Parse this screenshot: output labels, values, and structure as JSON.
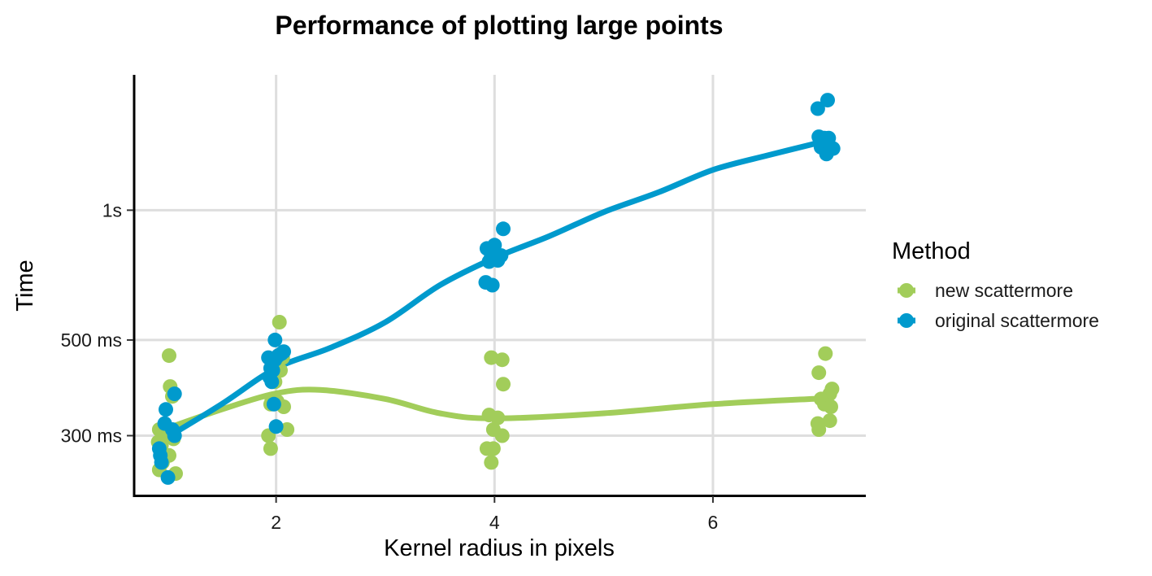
{
  "chart_data": {
    "type": "scatter",
    "title": "Performance of plotting large points",
    "xlabel": "Kernel radius in pixels",
    "ylabel": "Time",
    "x_scale": "linear",
    "y_scale": "log",
    "xlim": [
      0.7,
      7.4
    ],
    "ylim": [
      0.218,
      2.06
    ],
    "x_ticks": [
      2,
      4,
      6
    ],
    "x_tick_labels": [
      "2",
      "4",
      "6"
    ],
    "y_ticks": [
      0.3,
      0.5,
      1.0
    ],
    "y_tick_labels": [
      "300 ms",
      "500 ms",
      "1s"
    ],
    "grid": true,
    "legend": {
      "title": "Method",
      "position": "right"
    },
    "series": [
      {
        "name": "new scattermore",
        "color": "#A2CD5A",
        "points": [
          [
            1.02,
            0.46
          ],
          [
            1.03,
            0.39
          ],
          [
            1.05,
            0.37
          ],
          [
            0.93,
            0.31
          ],
          [
            0.97,
            0.3
          ],
          [
            1.0,
            0.305
          ],
          [
            1.06,
            0.295
          ],
          [
            0.92,
            0.29
          ],
          [
            0.95,
            0.285
          ],
          [
            1.02,
            0.27
          ],
          [
            0.96,
            0.26
          ],
          [
            0.93,
            0.25
          ],
          [
            1.08,
            0.245
          ],
          [
            2.03,
            0.55
          ],
          [
            2.06,
            0.455
          ],
          [
            1.98,
            0.44
          ],
          [
            1.97,
            0.42
          ],
          [
            2.04,
            0.425
          ],
          [
            1.99,
            0.4
          ],
          [
            1.96,
            0.365
          ],
          [
            2.01,
            0.36
          ],
          [
            2.07,
            0.35
          ],
          [
            1.95,
            0.355
          ],
          [
            2.1,
            0.31
          ],
          [
            1.93,
            0.3
          ],
          [
            1.95,
            0.28
          ],
          [
            3.97,
            0.455
          ],
          [
            4.07,
            0.45
          ],
          [
            4.08,
            0.395
          ],
          [
            3.95,
            0.335
          ],
          [
            4.03,
            0.33
          ],
          [
            3.99,
            0.31
          ],
          [
            4.07,
            0.3
          ],
          [
            3.93,
            0.28
          ],
          [
            3.99,
            0.28
          ],
          [
            3.97,
            0.26
          ],
          [
            7.03,
            0.465
          ],
          [
            6.97,
            0.42
          ],
          [
            7.09,
            0.385
          ],
          [
            7.07,
            0.375
          ],
          [
            6.99,
            0.365
          ],
          [
            7.02,
            0.355
          ],
          [
            7.08,
            0.35
          ],
          [
            6.96,
            0.32
          ],
          [
            6.97,
            0.31
          ],
          [
            7.07,
            0.325
          ]
        ],
        "trend": [
          [
            0.97,
            0.31
          ],
          [
            1.5,
            0.345
          ],
          [
            2.0,
            0.376
          ],
          [
            2.4,
            0.383
          ],
          [
            3.0,
            0.365
          ],
          [
            3.5,
            0.338
          ],
          [
            4.0,
            0.329
          ],
          [
            5.0,
            0.338
          ],
          [
            6.0,
            0.355
          ],
          [
            7.0,
            0.366
          ]
        ]
      },
      {
        "name": "original scattermore",
        "color": "#009ACD",
        "points": [
          [
            1.07,
            0.375
          ],
          [
            0.99,
            0.345
          ],
          [
            0.98,
            0.32
          ],
          [
            1.05,
            0.31
          ],
          [
            1.07,
            0.3
          ],
          [
            0.93,
            0.28
          ],
          [
            0.94,
            0.27
          ],
          [
            0.95,
            0.26
          ],
          [
            1.01,
            0.24
          ],
          [
            1.99,
            0.5
          ],
          [
            2.07,
            0.47
          ],
          [
            2.05,
            0.465
          ],
          [
            2.02,
            0.46
          ],
          [
            1.93,
            0.455
          ],
          [
            1.99,
            0.45
          ],
          [
            1.95,
            0.43
          ],
          [
            1.97,
            0.425
          ],
          [
            1.94,
            0.41
          ],
          [
            1.96,
            0.4
          ],
          [
            1.98,
            0.355
          ],
          [
            2.0,
            0.315
          ],
          [
            4.08,
            0.905
          ],
          [
            4.0,
            0.83
          ],
          [
            3.93,
            0.815
          ],
          [
            3.99,
            0.8
          ],
          [
            4.06,
            0.785
          ],
          [
            3.97,
            0.78
          ],
          [
            4.01,
            0.77
          ],
          [
            4.03,
            0.765
          ],
          [
            3.95,
            0.76
          ],
          [
            3.92,
            0.68
          ],
          [
            3.98,
            0.67
          ],
          [
            7.05,
            1.8
          ],
          [
            6.96,
            1.72
          ],
          [
            6.97,
            1.48
          ],
          [
            7.02,
            1.47
          ],
          [
            7.06,
            1.47
          ],
          [
            6.98,
            1.45
          ],
          [
            7.1,
            1.39
          ],
          [
            6.99,
            1.4
          ],
          [
            7.04,
            1.35
          ]
        ],
        "trend": [
          [
            1.0,
            0.297
          ],
          [
            1.5,
            0.355
          ],
          [
            2.0,
            0.43
          ],
          [
            2.5,
            0.48
          ],
          [
            3.0,
            0.55
          ],
          [
            3.5,
            0.67
          ],
          [
            4.0,
            0.775
          ],
          [
            4.5,
            0.87
          ],
          [
            5.0,
            0.99
          ],
          [
            5.5,
            1.1
          ],
          [
            6.0,
            1.24
          ],
          [
            6.5,
            1.34
          ],
          [
            7.0,
            1.44
          ]
        ]
      }
    ]
  }
}
